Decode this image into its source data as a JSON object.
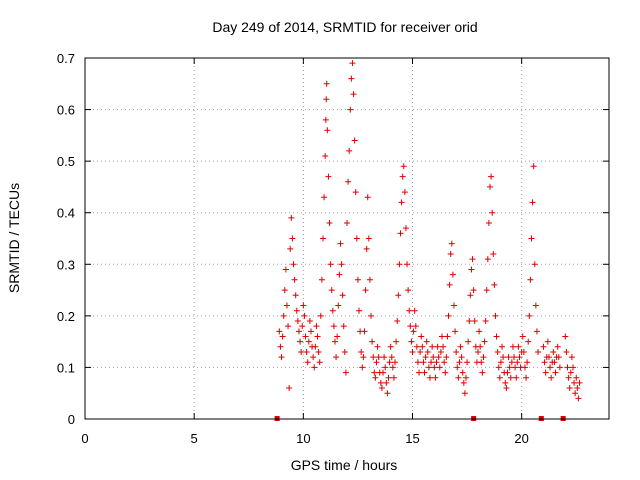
{
  "chart_data": {
    "type": "scatter",
    "title": "Day 249 of 2014, SRMTID for receiver orid",
    "xlabel": "GPS time / hours",
    "ylabel": "SRMTID / TECUs",
    "xlim": [
      0,
      24
    ],
    "ylim": [
      0,
      0.7
    ],
    "xticks": [
      0,
      5,
      10,
      15,
      20
    ],
    "yticks": [
      0,
      0.1,
      0.2,
      0.3,
      0.4,
      0.5,
      0.6,
      0.7
    ],
    "grid": true,
    "marker": "+",
    "color": "#e00000",
    "data_gap_markers_x": [
      8.8,
      17.8,
      20.9,
      21.9
    ],
    "series": [
      {
        "name": "SRMTID",
        "points": [
          [
            8.9,
            0.17
          ],
          [
            8.95,
            0.14
          ],
          [
            9.0,
            0.12
          ],
          [
            9.05,
            0.16
          ],
          [
            9.1,
            0.2
          ],
          [
            9.15,
            0.25
          ],
          [
            9.2,
            0.29
          ],
          [
            9.25,
            0.22
          ],
          [
            9.3,
            0.18
          ],
          [
            9.35,
            0.06
          ],
          [
            9.4,
            0.33
          ],
          [
            9.45,
            0.39
          ],
          [
            9.5,
            0.35
          ],
          [
            9.55,
            0.3
          ],
          [
            9.6,
            0.27
          ],
          [
            9.65,
            0.24
          ],
          [
            9.7,
            0.21
          ],
          [
            9.75,
            0.19
          ],
          [
            9.8,
            0.17
          ],
          [
            9.85,
            0.15
          ],
          [
            9.9,
            0.13
          ],
          [
            9.95,
            0.18
          ],
          [
            10.0,
            0.22
          ],
          [
            10.05,
            0.2
          ],
          [
            10.1,
            0.16
          ],
          [
            10.15,
            0.13
          ],
          [
            10.2,
            0.11
          ],
          [
            10.25,
            0.15
          ],
          [
            10.3,
            0.19
          ],
          [
            10.35,
            0.17
          ],
          [
            10.4,
            0.14
          ],
          [
            10.45,
            0.12
          ],
          [
            10.5,
            0.1
          ],
          [
            10.55,
            0.14
          ],
          [
            10.6,
            0.18
          ],
          [
            10.65,
            0.16
          ],
          [
            10.7,
            0.13
          ],
          [
            10.75,
            0.11
          ],
          [
            10.8,
            0.2
          ],
          [
            10.85,
            0.27
          ],
          [
            10.9,
            0.35
          ],
          [
            10.95,
            0.43
          ],
          [
            11.0,
            0.51
          ],
          [
            11.03,
            0.58
          ],
          [
            11.05,
            0.62
          ],
          [
            11.07,
            0.65
          ],
          [
            11.1,
            0.56
          ],
          [
            11.15,
            0.47
          ],
          [
            11.2,
            0.38
          ],
          [
            11.25,
            0.3
          ],
          [
            11.3,
            0.25
          ],
          [
            11.35,
            0.21
          ],
          [
            11.4,
            0.18
          ],
          [
            11.45,
            0.15
          ],
          [
            11.5,
            0.12
          ],
          [
            11.55,
            0.16
          ],
          [
            11.6,
            0.22
          ],
          [
            11.65,
            0.28
          ],
          [
            11.7,
            0.34
          ],
          [
            11.75,
            0.3
          ],
          [
            11.8,
            0.24
          ],
          [
            11.85,
            0.18
          ],
          [
            11.9,
            0.13
          ],
          [
            11.95,
            0.09
          ],
          [
            12.0,
            0.38
          ],
          [
            12.05,
            0.46
          ],
          [
            12.1,
            0.52
          ],
          [
            12.15,
            0.6
          ],
          [
            12.2,
            0.66
          ],
          [
            12.25,
            0.69
          ],
          [
            12.3,
            0.63
          ],
          [
            12.35,
            0.54
          ],
          [
            12.4,
            0.44
          ],
          [
            12.45,
            0.35
          ],
          [
            12.5,
            0.27
          ],
          [
            12.55,
            0.21
          ],
          [
            12.6,
            0.17
          ],
          [
            12.65,
            0.13
          ],
          [
            12.7,
            0.1
          ],
          [
            12.75,
            0.12
          ],
          [
            12.8,
            0.17
          ],
          [
            12.85,
            0.25
          ],
          [
            12.9,
            0.33
          ],
          [
            12.95,
            0.43
          ],
          [
            13.0,
            0.35
          ],
          [
            13.05,
            0.27
          ],
          [
            13.1,
            0.2
          ],
          [
            13.15,
            0.15
          ],
          [
            13.2,
            0.12
          ],
          [
            13.25,
            0.09
          ],
          [
            13.3,
            0.08
          ],
          [
            13.35,
            0.11
          ],
          [
            13.4,
            0.14
          ],
          [
            13.45,
            0.12
          ],
          [
            13.5,
            0.09
          ],
          [
            13.55,
            0.07
          ],
          [
            13.6,
            0.06
          ],
          [
            13.65,
            0.09
          ],
          [
            13.7,
            0.12
          ],
          [
            13.75,
            0.1
          ],
          [
            13.8,
            0.07
          ],
          [
            13.85,
            0.05
          ],
          [
            13.9,
            0.08
          ],
          [
            13.95,
            0.11
          ],
          [
            14.0,
            0.14
          ],
          [
            14.05,
            0.12
          ],
          [
            14.1,
            0.1
          ],
          [
            14.15,
            0.08
          ],
          [
            14.2,
            0.11
          ],
          [
            14.25,
            0.15
          ],
          [
            14.3,
            0.19
          ],
          [
            14.35,
            0.24
          ],
          [
            14.4,
            0.3
          ],
          [
            14.45,
            0.36
          ],
          [
            14.5,
            0.42
          ],
          [
            14.55,
            0.47
          ],
          [
            14.6,
            0.49
          ],
          [
            14.65,
            0.44
          ],
          [
            14.7,
            0.37
          ],
          [
            14.75,
            0.3
          ],
          [
            14.8,
            0.25
          ],
          [
            14.85,
            0.21
          ],
          [
            14.9,
            0.18
          ],
          [
            14.95,
            0.15
          ],
          [
            15.0,
            0.13
          ],
          [
            15.05,
            0.17
          ],
          [
            15.1,
            0.21
          ],
          [
            15.15,
            0.18
          ],
          [
            15.2,
            0.14
          ],
          [
            15.25,
            0.11
          ],
          [
            15.3,
            0.09
          ],
          [
            15.35,
            0.13
          ],
          [
            15.4,
            0.16
          ],
          [
            15.45,
            0.14
          ],
          [
            15.5,
            0.11
          ],
          [
            15.55,
            0.09
          ],
          [
            15.6,
            0.12
          ],
          [
            15.65,
            0.15
          ],
          [
            15.7,
            0.13
          ],
          [
            15.75,
            0.1
          ],
          [
            15.8,
            0.08
          ],
          [
            15.85,
            0.11
          ],
          [
            15.9,
            0.14
          ],
          [
            15.95,
            0.12
          ],
          [
            16.0,
            0.1
          ],
          [
            16.05,
            0.08
          ],
          [
            16.1,
            0.11
          ],
          [
            16.15,
            0.14
          ],
          [
            16.2,
            0.12
          ],
          [
            16.25,
            0.1
          ],
          [
            16.3,
            0.13
          ],
          [
            16.35,
            0.16
          ],
          [
            16.4,
            0.14
          ],
          [
            16.45,
            0.11
          ],
          [
            16.5,
            0.09
          ],
          [
            16.55,
            0.12
          ],
          [
            16.6,
            0.16
          ],
          [
            16.65,
            0.2
          ],
          [
            16.7,
            0.26
          ],
          [
            16.75,
            0.32
          ],
          [
            16.8,
            0.34
          ],
          [
            16.85,
            0.28
          ],
          [
            16.9,
            0.22
          ],
          [
            16.95,
            0.17
          ],
          [
            17.0,
            0.13
          ],
          [
            17.05,
            0.1
          ],
          [
            17.1,
            0.08
          ],
          [
            17.15,
            0.11
          ],
          [
            17.2,
            0.14
          ],
          [
            17.25,
            0.12
          ],
          [
            17.3,
            0.09
          ],
          [
            17.35,
            0.07
          ],
          [
            17.4,
            0.05
          ],
          [
            17.45,
            0.08
          ],
          [
            17.5,
            0.11
          ],
          [
            17.55,
            0.15
          ],
          [
            17.6,
            0.19
          ],
          [
            17.65,
            0.24
          ],
          [
            17.7,
            0.29
          ],
          [
            17.75,
            0.31
          ],
          [
            17.8,
            0.25
          ],
          [
            17.85,
            0.19
          ],
          [
            17.9,
            0.14
          ],
          [
            17.95,
            0.11
          ],
          [
            18.0,
            0.13
          ],
          [
            18.05,
            0.17
          ],
          [
            18.1,
            0.14
          ],
          [
            18.15,
            0.11
          ],
          [
            18.2,
            0.09
          ],
          [
            18.25,
            0.12
          ],
          [
            18.3,
            0.15
          ],
          [
            18.35,
            0.19
          ],
          [
            18.4,
            0.25
          ],
          [
            18.45,
            0.31
          ],
          [
            18.5,
            0.38
          ],
          [
            18.55,
            0.45
          ],
          [
            18.6,
            0.47
          ],
          [
            18.65,
            0.4
          ],
          [
            18.7,
            0.32
          ],
          [
            18.75,
            0.26
          ],
          [
            18.8,
            0.2
          ],
          [
            18.85,
            0.16
          ],
          [
            18.9,
            0.13
          ],
          [
            18.95,
            0.1
          ],
          [
            19.0,
            0.08
          ],
          [
            19.05,
            0.11
          ],
          [
            19.1,
            0.14
          ],
          [
            19.15,
            0.12
          ],
          [
            19.2,
            0.09
          ],
          [
            19.25,
            0.07
          ],
          [
            19.3,
            0.06
          ],
          [
            19.35,
            0.09
          ],
          [
            19.4,
            0.12
          ],
          [
            19.45,
            0.1
          ],
          [
            19.5,
            0.08
          ],
          [
            19.55,
            0.11
          ],
          [
            19.6,
            0.14
          ],
          [
            19.65,
            0.12
          ],
          [
            19.7,
            0.1
          ],
          [
            19.75,
            0.08
          ],
          [
            19.8,
            0.11
          ],
          [
            19.85,
            0.14
          ],
          [
            19.9,
            0.12
          ],
          [
            19.95,
            0.1
          ],
          [
            20.0,
            0.13
          ],
          [
            20.05,
            0.16
          ],
          [
            20.1,
            0.13
          ],
          [
            20.15,
            0.1
          ],
          [
            20.2,
            0.08
          ],
          [
            20.25,
            0.11
          ],
          [
            20.3,
            0.15
          ],
          [
            20.35,
            0.2
          ],
          [
            20.4,
            0.27
          ],
          [
            20.45,
            0.35
          ],
          [
            20.5,
            0.42
          ],
          [
            20.55,
            0.49
          ],
          [
            20.6,
            0.3
          ],
          [
            20.65,
            0.22
          ],
          [
            20.7,
            0.17
          ],
          [
            20.75,
            0.13
          ],
          [
            21.0,
            0.14
          ],
          [
            21.05,
            0.11
          ],
          [
            21.1,
            0.09
          ],
          [
            21.15,
            0.12
          ],
          [
            21.2,
            0.15
          ],
          [
            21.25,
            0.12
          ],
          [
            21.3,
            0.1
          ],
          [
            21.35,
            0.08
          ],
          [
            21.4,
            0.11
          ],
          [
            21.45,
            0.13
          ],
          [
            21.5,
            0.11
          ],
          [
            21.55,
            0.09
          ],
          [
            21.6,
            0.12
          ],
          [
            21.65,
            0.14
          ],
          [
            21.7,
            0.12
          ],
          [
            21.75,
            0.1
          ],
          [
            22.0,
            0.16
          ],
          [
            22.05,
            0.13
          ],
          [
            22.1,
            0.1
          ],
          [
            22.15,
            0.08
          ],
          [
            22.2,
            0.06
          ],
          [
            22.25,
            0.09
          ],
          [
            22.3,
            0.12
          ],
          [
            22.35,
            0.1
          ],
          [
            22.4,
            0.07
          ],
          [
            22.45,
            0.05
          ],
          [
            22.5,
            0.08
          ],
          [
            22.55,
            0.06
          ],
          [
            22.6,
            0.04
          ],
          [
            22.65,
            0.07
          ]
        ]
      }
    ]
  }
}
